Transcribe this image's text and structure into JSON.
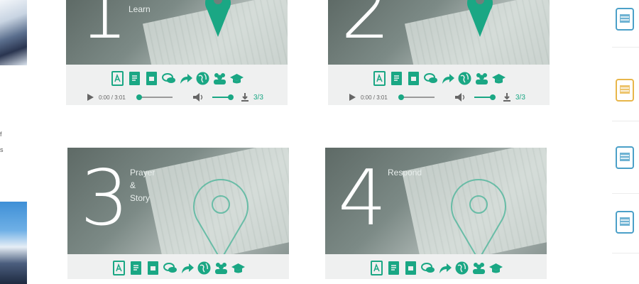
{
  "left": {
    "text_lines": [
      "",
      "f",
      "s"
    ]
  },
  "cards": [
    {
      "number": "1",
      "caption": [
        "Learn"
      ],
      "controls": {
        "time": "0:00 / 3:01",
        "count": "3/3"
      }
    },
    {
      "number": "2",
      "caption": [
        ""
      ],
      "controls": {
        "time": "0:00 / 3:01",
        "count": "3/3"
      }
    },
    {
      "number": "3",
      "caption": [
        "Prayer",
        "&",
        "Story"
      ],
      "controls": {}
    },
    {
      "number": "4",
      "caption": [
        "Respond"
      ],
      "controls": {}
    }
  ],
  "icon_row": [
    "pdf-icon",
    "doc-icon",
    "doc-alt-icon",
    "chat-icon",
    "share-icon",
    "globe-icon",
    "group-icon",
    "graduation-cap-icon"
  ],
  "colors": {
    "accent": "#1aa784",
    "card_bg": "#eff0f0",
    "doc_blue": "#4ba0c8",
    "doc_yellow": "#e8b64a"
  },
  "right": {
    "doc_icons": [
      "doc-blue-icon",
      "doc-yellow-icon",
      "doc-blue-icon",
      "doc-blue-icon"
    ]
  }
}
